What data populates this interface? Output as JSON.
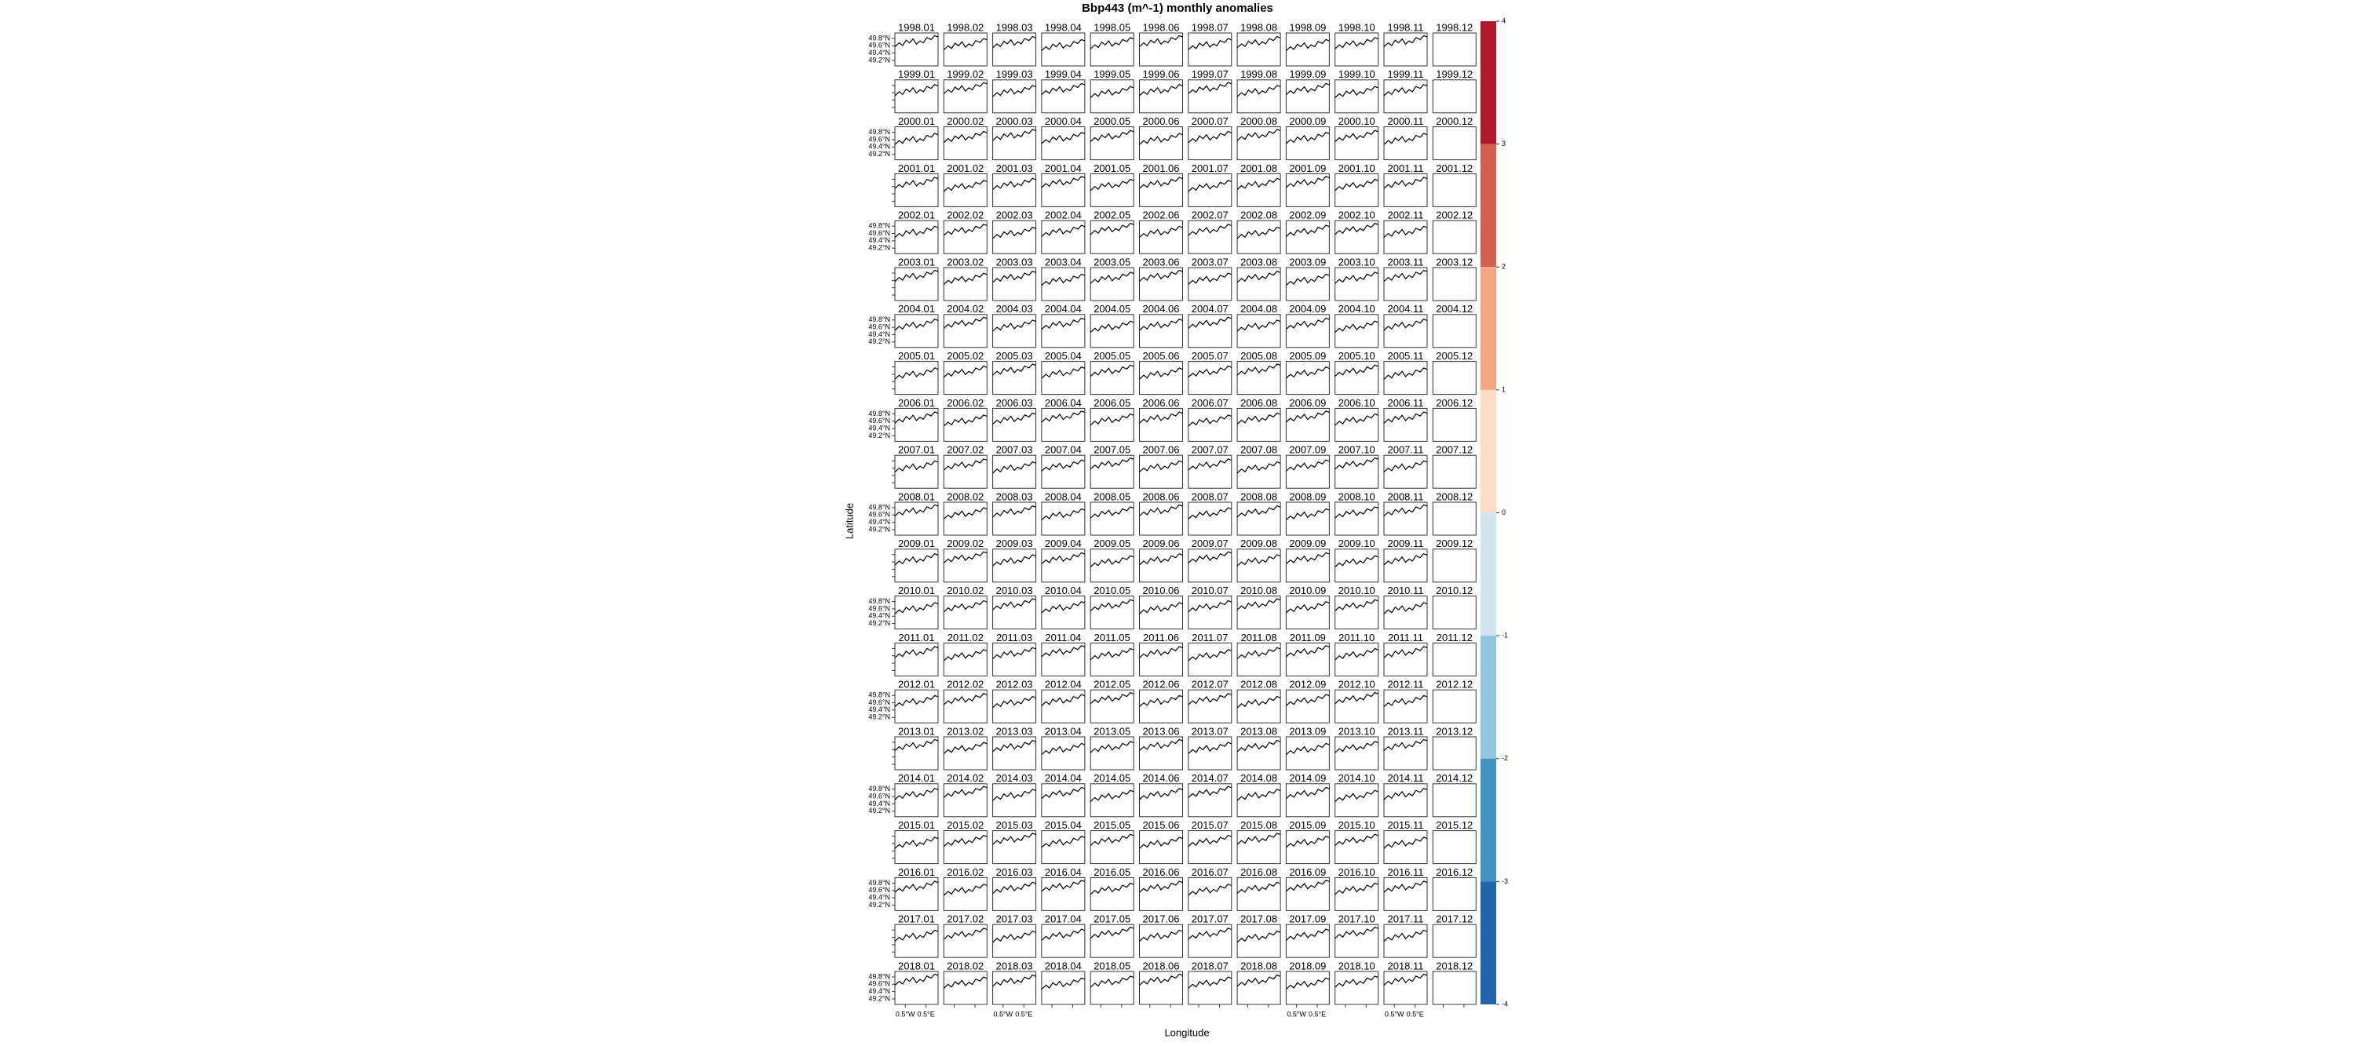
{
  "title": "Bbp443 (m^-1) monthly anomalies",
  "x_label": "Longitude",
  "y_label": "Latitude",
  "lonlim": [
    -1.0,
    1.08
  ],
  "lon_ticks": [
    {
      "value": -0.5,
      "label": "0.5°W"
    },
    {
      "value": 0.5,
      "label": "0.5°E"
    }
  ],
  "latlim": [
    49.05,
    49.95
  ],
  "lat_ticks": [
    {
      "value": 49.8,
      "label": "49.8°N"
    },
    {
      "value": 49.6,
      "label": "49.6°N"
    },
    {
      "value": 49.4,
      "label": "49.4°N"
    },
    {
      "value": 49.2,
      "label": "49.2°N"
    }
  ],
  "colorbar": {
    "lim": [
      -4,
      4
    ],
    "ticks": [
      4,
      3,
      2,
      1,
      0,
      -1,
      -2,
      -3,
      -4
    ],
    "colors": [
      "#b2182b",
      "#d6604d",
      "#f4a582",
      "#fddbc7",
      "#d1e5f0",
      "#92c5de",
      "#4393c3",
      "#2166ac"
    ]
  },
  "panels": [
    [
      "1998.01",
      "1998.02",
      "1998.03",
      "1998.04",
      "1998.05",
      "1998.06",
      "1998.07",
      "1998.08",
      "1998.09",
      "1998.10",
      "1998.11",
      "1998.12"
    ],
    [
      "1999.01",
      "1999.02",
      "1999.03",
      "1999.04",
      "1999.05",
      "1999.06",
      "1999.07",
      "1999.08",
      "1999.09",
      "1999.10",
      "1999.11",
      "1999.12"
    ],
    [
      "2000.01",
      "2000.02",
      "2000.03",
      "2000.04",
      "2000.05",
      "2000.06",
      "2000.07",
      "2000.08",
      "2000.09",
      "2000.10",
      "2000.11",
      "2000.12"
    ],
    [
      "2001.01",
      "2001.02",
      "2001.03",
      "2001.04",
      "2001.05",
      "2001.06",
      "2001.07",
      "2001.08",
      "2001.09",
      "2001.10",
      "2001.11",
      "2001.12"
    ],
    [
      "2002.01",
      "2002.02",
      "2002.03",
      "2002.04",
      "2002.05",
      "2002.06",
      "2002.07",
      "2002.08",
      "2002.09",
      "2002.10",
      "2002.11",
      "2002.12"
    ],
    [
      "2003.01",
      "2003.02",
      "2003.03",
      "2003.04",
      "2003.05",
      "2003.06",
      "2003.07",
      "2003.08",
      "2003.09",
      "2003.10",
      "2003.11",
      "2003.12"
    ],
    [
      "2004.01",
      "2004.02",
      "2004.03",
      "2004.04",
      "2004.05",
      "2004.06",
      "2004.07",
      "2004.08",
      "2004.09",
      "2004.10",
      "2004.11",
      "2004.12"
    ],
    [
      "2005.01",
      "2005.02",
      "2005.03",
      "2005.04",
      "2005.05",
      "2005.06",
      "2005.07",
      "2005.08",
      "2005.09",
      "2005.10",
      "2005.11",
      "2005.12"
    ],
    [
      "2006.01",
      "2006.02",
      "2006.03",
      "2006.04",
      "2006.05",
      "2006.06",
      "2006.07",
      "2006.08",
      "2006.09",
      "2006.10",
      "2006.11",
      "2006.12"
    ],
    [
      "2007.01",
      "2007.02",
      "2007.03",
      "2007.04",
      "2007.05",
      "2007.06",
      "2007.07",
      "2007.08",
      "2007.09",
      "2007.10",
      "2007.11",
      "2007.12"
    ],
    [
      "2008.01",
      "2008.02",
      "2008.03",
      "2008.04",
      "2008.05",
      "2008.06",
      "2008.07",
      "2008.08",
      "2008.09",
      "2008.10",
      "2008.11",
      "2008.12"
    ],
    [
      "2009.01",
      "2009.02",
      "2009.03",
      "2009.04",
      "2009.05",
      "2009.06",
      "2009.07",
      "2009.08",
      "2009.09",
      "2009.10",
      "2009.11",
      "2009.12"
    ],
    [
      "2010.01",
      "2010.02",
      "2010.03",
      "2010.04",
      "2010.05",
      "2010.06",
      "2010.07",
      "2010.08",
      "2010.09",
      "2010.10",
      "2010.11",
      "2010.12"
    ],
    [
      "2011.01",
      "2011.02",
      "2011.03",
      "2011.04",
      "2011.05",
      "2011.06",
      "2011.07",
      "2011.08",
      "2011.09",
      "2011.10",
      "2011.11",
      "2011.12"
    ],
    [
      "2012.01",
      "2012.02",
      "2012.03",
      "2012.04",
      "2012.05",
      "2012.06",
      "2012.07",
      "2012.08",
      "2012.09",
      "2012.10",
      "2012.11",
      "2012.12"
    ],
    [
      "2013.01",
      "2013.02",
      "2013.03",
      "2013.04",
      "2013.05",
      "2013.06",
      "2013.07",
      "2013.08",
      "2013.09",
      "2013.10",
      "2013.11",
      "2013.12"
    ],
    [
      "2014.01",
      "2014.02",
      "2014.03",
      "2014.04",
      "2014.05",
      "2014.06",
      "2014.07",
      "2014.08",
      "2014.09",
      "2014.10",
      "2014.11",
      "2014.12"
    ],
    [
      "2015.01",
      "2015.02",
      "2015.03",
      "2015.04",
      "2015.05",
      "2015.06",
      "2015.07",
      "2015.08",
      "2015.09",
      "2015.10",
      "2015.11",
      "2015.12"
    ],
    [
      "2016.01",
      "2016.02",
      "2016.03",
      "2016.04",
      "2016.05",
      "2016.06",
      "2016.07",
      "2016.08",
      "2016.09",
      "2016.10",
      "2016.11",
      "2016.12"
    ],
    [
      "2017.01",
      "2017.02",
      "2017.03",
      "2017.04",
      "2017.05",
      "2017.06",
      "2017.07",
      "2017.08",
      "2017.09",
      "2017.10",
      "2017.11",
      "2017.12"
    ],
    [
      "2018.01",
      "2018.02",
      "2018.03",
      "2018.04",
      "2018.05",
      "2018.06",
      "2018.07",
      "2018.08",
      "2018.09",
      "2018.10",
      "2018.11",
      "2018.12"
    ]
  ]
}
